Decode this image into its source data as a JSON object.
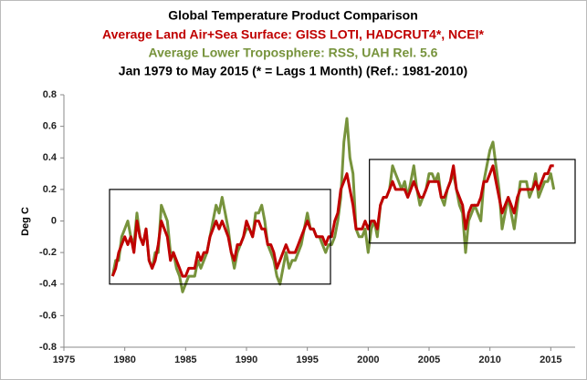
{
  "chart_data": {
    "type": "line",
    "title": "Global Temperature Product Comparison",
    "subtitles": [
      {
        "text": "Average Land Air+Sea Surface: GISS LOTI, HADCRUT4*, NCEI*",
        "color": "#c00000"
      },
      {
        "text": "Average Lower Troposphere: RSS, UAH Rel. 5.6",
        "color": "#77933c"
      },
      {
        "text": "Jan 1979 to May 2015 (* = Lags 1 Month) (Ref.: 1981-2010)",
        "color": "#000000"
      }
    ],
    "y_label": "Deg C",
    "xlim": [
      1975,
      2017
    ],
    "xticks": [
      1975,
      1980,
      1985,
      1990,
      1995,
      2000,
      2005,
      2010,
      2015
    ],
    "ylim": [
      -0.8,
      0.8
    ],
    "yticks": [
      {
        "value": -0.8,
        "label": "-0.8"
      },
      {
        "value": -0.6,
        "label": "-0.6"
      },
      {
        "value": -0.4,
        "label": "-0.4"
      },
      {
        "value": -0.2,
        "label": "-0.2"
      },
      0,
      {
        "value": 0.2,
        "label": "0.2"
      },
      {
        "value": 0.4,
        "label": "0.4"
      },
      {
        "value": 0.6,
        "label": "0.6"
      },
      {
        "value": 0.8,
        "label": "0.8"
      }
    ],
    "grid": false,
    "x": [
      1979,
      1979.25,
      1979.5,
      1979.75,
      1980,
      1980.25,
      1980.5,
      1980.75,
      1981,
      1981.25,
      1981.5,
      1981.75,
      1982,
      1982.25,
      1982.5,
      1982.75,
      1983,
      1983.25,
      1983.5,
      1983.75,
      1984,
      1984.25,
      1984.5,
      1984.75,
      1985,
      1985.25,
      1985.5,
      1985.75,
      1986,
      1986.25,
      1986.5,
      1986.75,
      1987,
      1987.25,
      1987.5,
      1987.75,
      1988,
      1988.25,
      1988.5,
      1988.75,
      1989,
      1989.25,
      1989.5,
      1989.75,
      1990,
      1990.25,
      1990.5,
      1990.75,
      1991,
      1991.25,
      1991.5,
      1991.75,
      1992,
      1992.25,
      1992.5,
      1992.75,
      1993,
      1993.25,
      1993.5,
      1993.75,
      1994,
      1994.25,
      1994.5,
      1994.75,
      1995,
      1995.25,
      1995.5,
      1995.75,
      1996,
      1996.25,
      1996.5,
      1996.75,
      1997,
      1997.25,
      1997.5,
      1997.75,
      1998,
      1998.25,
      1998.5,
      1998.75,
      1999,
      1999.25,
      1999.5,
      1999.75,
      2000,
      2000.25,
      2000.5,
      2000.75,
      2001,
      2001.25,
      2001.5,
      2001.75,
      2002,
      2002.25,
      2002.5,
      2002.75,
      2003,
      2003.25,
      2003.5,
      2003.75,
      2004,
      2004.25,
      2004.5,
      2004.75,
      2005,
      2005.25,
      2005.5,
      2005.75,
      2006,
      2006.25,
      2006.5,
      2006.75,
      2007,
      2007.25,
      2007.5,
      2007.75,
      2008,
      2008.25,
      2008.5,
      2008.75,
      2009,
      2009.25,
      2009.5,
      2009.75,
      2010,
      2010.25,
      2010.5,
      2010.75,
      2011,
      2011.25,
      2011.5,
      2011.75,
      2012,
      2012.25,
      2012.5,
      2012.75,
      2013,
      2013.25,
      2013.5,
      2013.75,
      2014,
      2014.25,
      2014.5,
      2014.75,
      2015,
      2015.25
    ],
    "series": [
      {
        "color": "#77933c",
        "values": [
          -0.35,
          -0.25,
          -0.25,
          -0.1,
          -0.05,
          0.0,
          -0.1,
          -0.15,
          0.05,
          -0.1,
          -0.15,
          -0.05,
          -0.25,
          -0.3,
          -0.2,
          -0.2,
          0.1,
          0.05,
          0.0,
          -0.2,
          -0.2,
          -0.3,
          -0.35,
          -0.45,
          -0.4,
          -0.35,
          -0.35,
          -0.35,
          -0.25,
          -0.3,
          -0.25,
          -0.2,
          -0.1,
          0.0,
          0.1,
          0.05,
          0.15,
          0.05,
          -0.05,
          -0.2,
          -0.3,
          -0.2,
          -0.15,
          -0.1,
          -0.05,
          -0.05,
          -0.1,
          0.05,
          0.05,
          0.1,
          0.0,
          -0.15,
          -0.2,
          -0.25,
          -0.35,
          -0.4,
          -0.3,
          -0.2,
          -0.3,
          -0.25,
          -0.25,
          -0.2,
          -0.15,
          -0.05,
          0.05,
          -0.05,
          -0.05,
          -0.1,
          -0.1,
          -0.15,
          -0.2,
          -0.15,
          -0.15,
          -0.1,
          0.0,
          0.15,
          0.5,
          0.65,
          0.4,
          0.3,
          -0.05,
          -0.1,
          -0.1,
          -0.05,
          -0.2,
          -0.05,
          0.0,
          -0.1,
          0.1,
          0.15,
          0.15,
          0.2,
          0.35,
          0.3,
          0.25,
          0.2,
          0.25,
          0.15,
          0.25,
          0.35,
          0.2,
          0.1,
          0.15,
          0.2,
          0.3,
          0.3,
          0.25,
          0.3,
          0.15,
          0.1,
          0.2,
          0.25,
          0.3,
          0.2,
          0.1,
          0.05,
          -0.2,
          0.0,
          0.05,
          0.1,
          0.05,
          0.0,
          0.25,
          0.35,
          0.45,
          0.5,
          0.35,
          0.2,
          -0.05,
          0.05,
          0.15,
          0.05,
          -0.05,
          0.1,
          0.25,
          0.25,
          0.25,
          0.15,
          0.2,
          0.3,
          0.15,
          0.2,
          0.25,
          0.25,
          0.3,
          0.2
        ]
      },
      {
        "color": "#c00000",
        "values": [
          -0.35,
          -0.3,
          -0.2,
          -0.15,
          -0.1,
          -0.15,
          -0.1,
          -0.2,
          0.0,
          -0.1,
          -0.15,
          -0.05,
          -0.25,
          -0.3,
          -0.25,
          -0.15,
          0.0,
          -0.05,
          -0.1,
          -0.25,
          -0.2,
          -0.25,
          -0.3,
          -0.35,
          -0.35,
          -0.3,
          -0.3,
          -0.3,
          -0.2,
          -0.25,
          -0.2,
          -0.2,
          -0.1,
          -0.05,
          0.0,
          -0.05,
          0.0,
          -0.05,
          -0.1,
          -0.2,
          -0.25,
          -0.15,
          -0.15,
          -0.1,
          0.0,
          -0.05,
          -0.1,
          0.0,
          0.0,
          -0.05,
          -0.05,
          -0.15,
          -0.15,
          -0.2,
          -0.3,
          -0.25,
          -0.2,
          -0.15,
          -0.2,
          -0.2,
          -0.2,
          -0.15,
          -0.1,
          -0.05,
          0.0,
          -0.05,
          -0.05,
          -0.1,
          -0.1,
          -0.1,
          -0.15,
          -0.1,
          -0.1,
          0.0,
          0.05,
          0.2,
          0.25,
          0.3,
          0.2,
          0.1,
          -0.05,
          -0.05,
          -0.05,
          0.0,
          -0.05,
          0.0,
          0.0,
          -0.05,
          0.1,
          0.15,
          0.15,
          0.2,
          0.25,
          0.2,
          0.2,
          0.2,
          0.2,
          0.15,
          0.2,
          0.25,
          0.2,
          0.15,
          0.15,
          0.2,
          0.25,
          0.25,
          0.25,
          0.25,
          0.15,
          0.15,
          0.2,
          0.25,
          0.35,
          0.2,
          0.15,
          0.1,
          -0.05,
          0.05,
          0.1,
          0.1,
          0.1,
          0.15,
          0.25,
          0.25,
          0.3,
          0.35,
          0.25,
          0.15,
          0.05,
          0.1,
          0.15,
          0.1,
          0.05,
          0.15,
          0.2,
          0.2,
          0.2,
          0.2,
          0.2,
          0.25,
          0.2,
          0.25,
          0.3,
          0.3,
          0.35,
          0.35
        ]
      }
    ],
    "boxes": [
      {
        "x0": 1978.75,
        "x1": 1996.9,
        "y0": -0.4,
        "y1": 0.2
      },
      {
        "x0": 2000.1,
        "x1": 2017,
        "y0": -0.14,
        "y1": 0.39
      }
    ]
  }
}
